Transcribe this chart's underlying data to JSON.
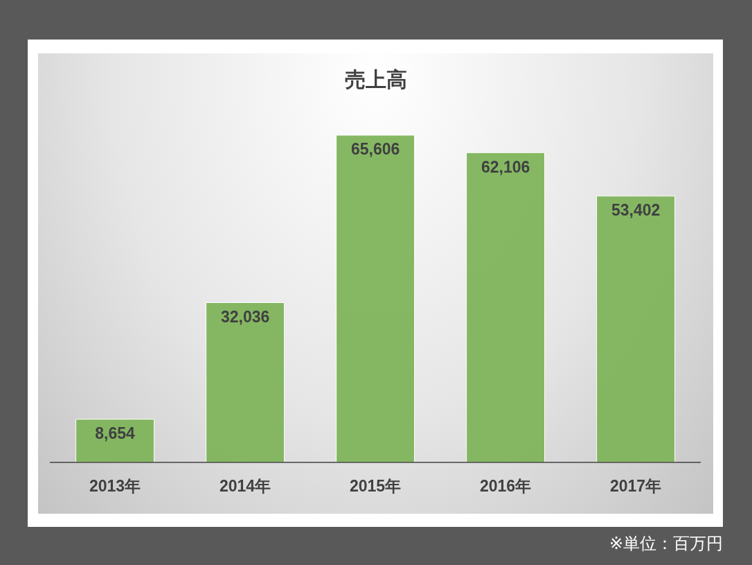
{
  "chart_data": {
    "type": "bar",
    "title": "売上高",
    "categories": [
      "2013年",
      "2014年",
      "2015年",
      "2016年",
      "2017年"
    ],
    "values": [
      8654,
      32036,
      65606,
      62106,
      53402
    ],
    "color": "#80b45c",
    "value_labels": [
      "8,654",
      "32,036",
      "65,606",
      "62,106",
      "53,402"
    ],
    "tick_labels": "x",
    "annotations": [
      "※単位：百万円"
    ]
  }
}
